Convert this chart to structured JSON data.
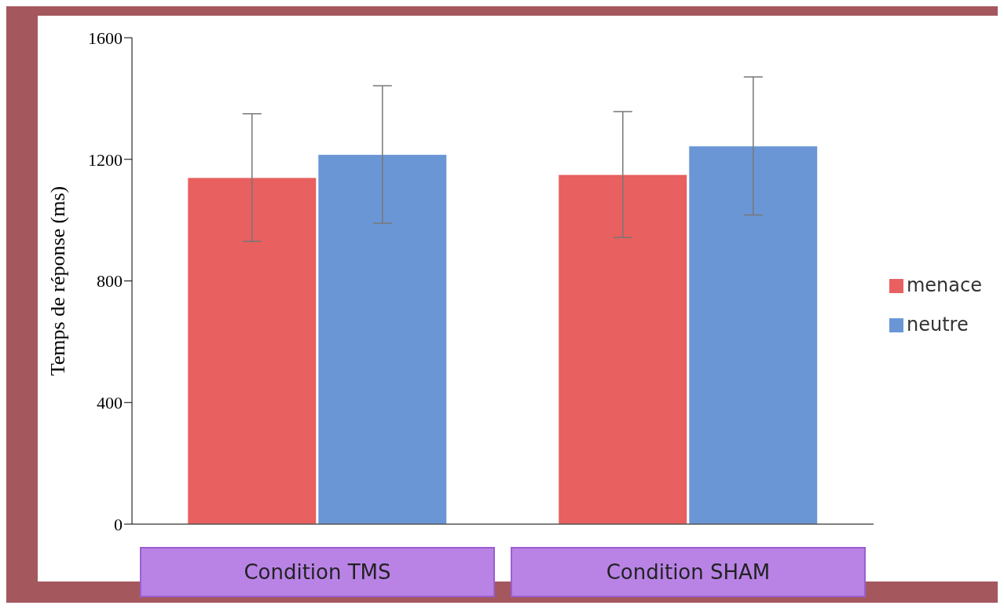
{
  "chart_data": {
    "type": "bar",
    "ylabel": "Temps de réponse (ms)",
    "categories": [
      "Condition TMS",
      "Condition SHAM"
    ],
    "series": [
      {
        "name": "menace",
        "color": "#e8605f",
        "values": [
          1140,
          1150
        ],
        "errors": [
          210,
          207
        ]
      },
      {
        "name": "neutre",
        "color": "#6b96d6",
        "values": [
          1216,
          1244
        ],
        "errors": [
          226,
          227
        ]
      }
    ],
    "ylim": [
      0,
      1600
    ],
    "yticks": [
      0,
      400,
      800,
      1200,
      1600
    ],
    "grid": false,
    "legend": "right"
  }
}
